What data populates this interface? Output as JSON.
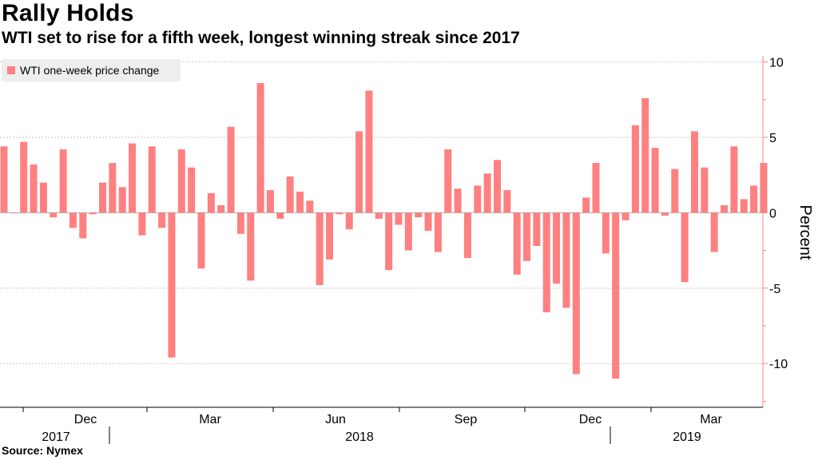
{
  "title": "Rally Holds",
  "subtitle": "WTI set to rise for a fifth week, longest winning streak since 2017",
  "source": "Source: Nymex",
  "chart_data": {
    "type": "bar",
    "series": [
      {
        "name": "WTI one-week price change",
        "color": "#ff8080",
        "values": [
          4.4,
          0.0,
          4.7,
          3.2,
          2.0,
          -0.3,
          4.2,
          -1.0,
          -1.7,
          -0.1,
          2.0,
          3.3,
          1.7,
          4.6,
          -1.5,
          4.4,
          -1.0,
          -9.6,
          4.2,
          3.0,
          -3.7,
          1.3,
          0.5,
          5.7,
          -1.4,
          -4.5,
          8.6,
          1.5,
          -0.4,
          2.4,
          1.4,
          0.8,
          -4.8,
          -3.1,
          -0.1,
          -1.1,
          5.4,
          8.1,
          -0.4,
          -3.8,
          -0.8,
          -2.5,
          -0.3,
          -1.2,
          -2.6,
          4.2,
          1.6,
          -3.0,
          1.8,
          2.6,
          3.5,
          1.5,
          -4.1,
          -3.2,
          -2.2,
          -6.6,
          -4.7,
          -6.3,
          -10.7,
          1.0,
          3.3,
          -2.7,
          -11.0,
          -0.5,
          5.8,
          7.6,
          4.3,
          -0.2,
          2.9,
          -4.6,
          5.4,
          3.0,
          -2.6,
          0.5,
          4.4,
          0.9,
          1.8,
          3.3
        ]
      }
    ],
    "x_month_labels": [
      "Dec",
      "Mar",
      "Jun",
      "Sep",
      "Dec",
      "Mar"
    ],
    "x_year_labels": [
      "2017",
      "2018",
      "2019"
    ],
    "y_ticks": [
      10,
      5,
      0,
      -5,
      -10
    ],
    "ylabel": "Percent",
    "ylim": [
      -12.9,
      10.4
    ],
    "grid": true,
    "legend_position": "top-left"
  }
}
